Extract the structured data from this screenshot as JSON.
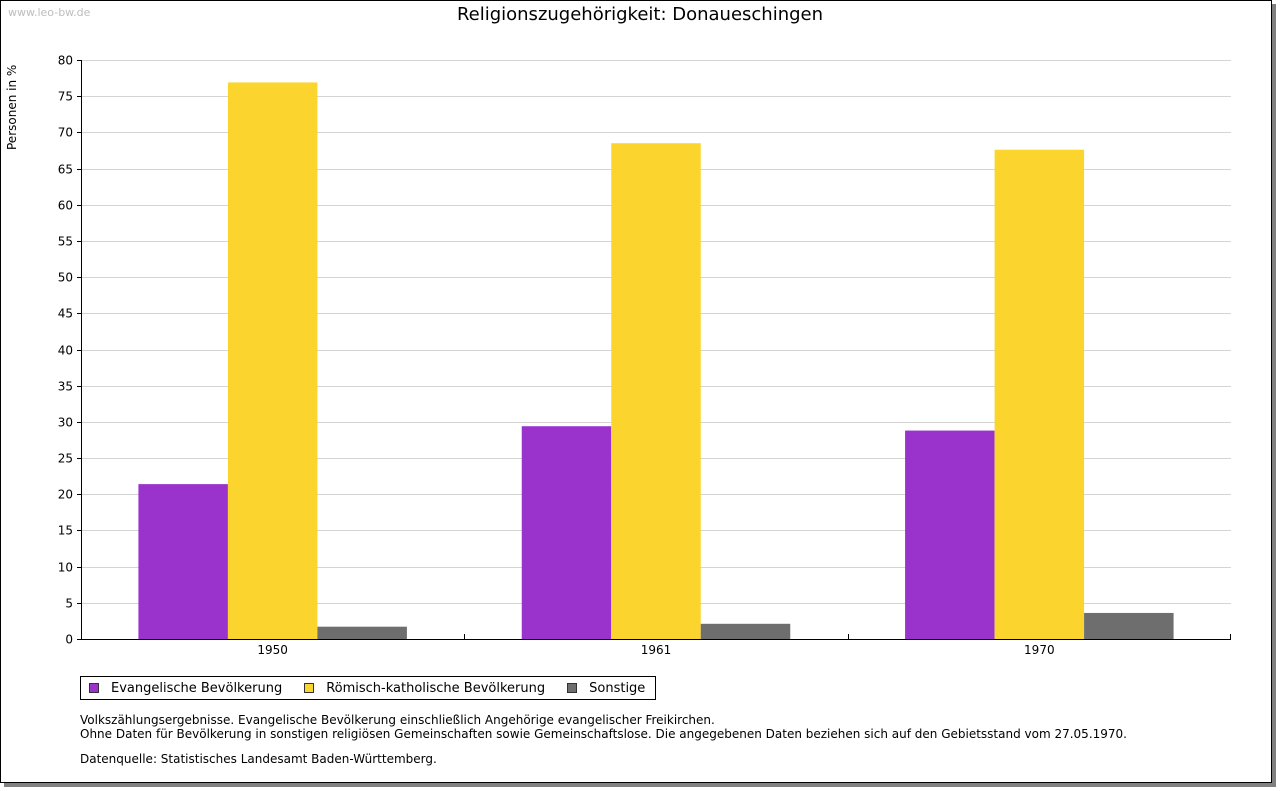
{
  "watermark": "www.leo-bw.de",
  "chart_data": {
    "type": "bar",
    "title": "Religionszugehörigkeit: Donaueschingen",
    "xlabel": "",
    "ylabel": "Personen in %",
    "ylim": [
      0,
      80
    ],
    "ytick_step": 5,
    "grid": true,
    "legend_position": "bottom-left",
    "categories": [
      "1950",
      "1961",
      "1970"
    ],
    "series": [
      {
        "name": "Evangelische Bevölkerung",
        "color": "#9933cc",
        "values": [
          21.4,
          29.4,
          28.8
        ]
      },
      {
        "name": "Römisch-katholische Bevölkerung",
        "color": "#fbd52e",
        "values": [
          76.9,
          68.5,
          67.6
        ]
      },
      {
        "name": "Sonstige",
        "color": "#6e6e6e",
        "values": [
          1.7,
          2.1,
          3.6
        ]
      }
    ]
  },
  "notes": [
    "Volkszählungsergebnisse. Evangelische Bevölkerung einschließlich Angehörige evangelischer Freikirchen.",
    "Ohne Daten für Bevölkerung in sonstigen religiösen Gemeinschaften sowie Gemeinschaftslose. Die angegebenen Daten beziehen sich auf den Gebietsstand vom 27.05.1970."
  ],
  "source": "Datenquelle: Statistisches Landesamt Baden-Württemberg."
}
